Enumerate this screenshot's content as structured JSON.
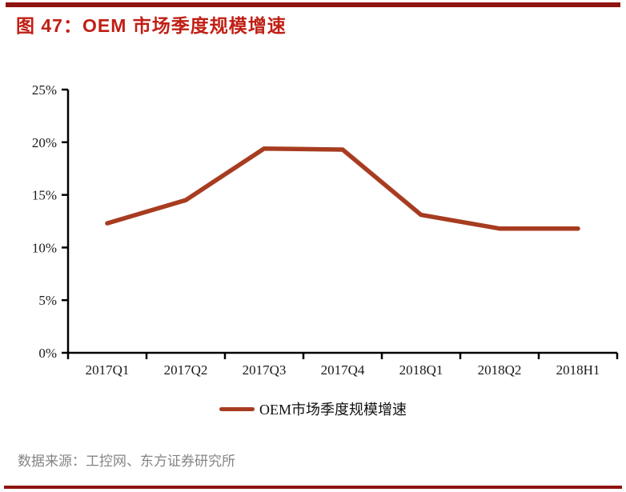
{
  "title": "图 47：OEM 市场季度规模增速",
  "source_note": "数据来源：工控网、东方证券研究所",
  "colors": {
    "divider": "#8f1410",
    "title": "#c01f14",
    "series_line": "#a73c20",
    "axis": "#000000",
    "tick_text": "#1a1a1a",
    "source_text": "#858585"
  },
  "chart_data": {
    "type": "line",
    "categories": [
      "2017Q1",
      "2017Q2",
      "2017Q3",
      "2017Q4",
      "2018Q1",
      "2018Q2",
      "2018H1"
    ],
    "series": [
      {
        "name": "OEM市场季度规模增速",
        "values": [
          12.3,
          14.5,
          19.4,
          19.3,
          13.1,
          11.8,
          11.8
        ]
      }
    ],
    "title": "",
    "xlabel": "",
    "ylabel": "",
    "ylim": [
      0,
      25
    ],
    "ytick_step": 5,
    "ytick_labels": [
      "0%",
      "5%",
      "10%",
      "15%",
      "20%",
      "25%"
    ],
    "grid": false,
    "legend_position": "bottom"
  }
}
